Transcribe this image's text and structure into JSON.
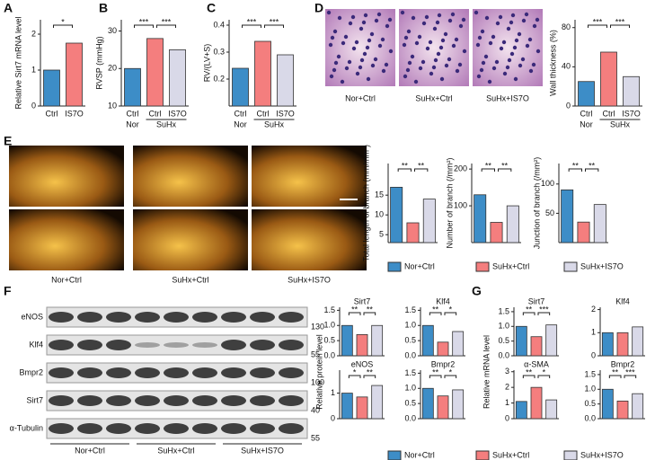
{
  "panels": {
    "letters": [
      "A",
      "B",
      "C",
      "D",
      "E",
      "F",
      "G"
    ],
    "d_images": [
      "Nor+Ctrl",
      "SuHx+Ctrl",
      "SuHx+IS7O"
    ],
    "e_images": [
      "Nor+Ctrl",
      "SuHx+Ctrl",
      "SuHx+IS7O"
    ],
    "legend": [
      {
        "name": "Nor+Ctrl",
        "color": "#3d8dc7"
      },
      {
        "name": "SuHx+Ctrl",
        "color": "#f47e7e"
      },
      {
        "name": "SuHx+IS7O",
        "color": "#d9d9e8"
      }
    ],
    "blot_rows": [
      "eNOS",
      "Klf4",
      "Bmpr2",
      "Sirt7",
      "α-Tubulin"
    ],
    "blot_markers": [
      130,
      55,
      100,
      40,
      55
    ],
    "blot_groups": [
      "Nor+Ctrl",
      "SuHx+Ctrl",
      "SuHx+IS7O"
    ],
    "f_ylabel": "Relative protein level",
    "g_ylabel": "Relative mRNA level"
  },
  "chart_data": [
    {
      "type": "bar",
      "ylabel": "Relative Sirt7 mRNA level",
      "categories": [
        "Ctrl",
        "IS7O"
      ],
      "values": [
        1.0,
        1.75
      ],
      "ylim": [
        0,
        2.4
      ],
      "yticks": [
        0,
        1,
        2
      ],
      "annotations": [
        "*"
      ]
    },
    {
      "type": "bar",
      "ylabel": "RVSP (mmHg)",
      "categories": [
        "Ctrl",
        "Ctrl",
        "IS7O"
      ],
      "groups": [
        "Nor",
        "SuHx"
      ],
      "values": [
        20,
        28,
        25
      ],
      "ylim": [
        10,
        33
      ],
      "yticks": [
        10,
        20,
        30
      ],
      "annotations": [
        "***",
        "***"
      ]
    },
    {
      "type": "bar",
      "ylabel": "RV/(LV+S)",
      "categories": [
        "Ctrl",
        "Ctrl",
        "IS7O"
      ],
      "groups": [
        "Nor",
        "SuHx"
      ],
      "values": [
        0.24,
        0.34,
        0.29
      ],
      "ylim": [
        0.1,
        0.42
      ],
      "yticks": [
        0.2,
        0.3,
        0.4
      ],
      "annotations": [
        "***",
        "***"
      ]
    },
    {
      "type": "bar",
      "ylabel": "Wall thickness (%)",
      "categories": [
        "Ctrl",
        "Ctrl",
        "IS7O"
      ],
      "groups": [
        "Nor",
        "SuHx"
      ],
      "values": [
        25,
        55,
        30
      ],
      "ylim": [
        0,
        88
      ],
      "yticks": [
        0,
        40,
        80
      ],
      "annotations": [
        "***",
        "***"
      ]
    },
    {
      "type": "bar",
      "ylabel": "Total length of branch (mm/mm²)",
      "values": [
        17,
        8,
        14
      ],
      "ylim": [
        3,
        23
      ],
      "yticks": [
        5,
        10,
        15
      ],
      "annotations": [
        "**",
        "**"
      ]
    },
    {
      "type": "bar",
      "ylabel": "Number of branch (/mm²)",
      "values": [
        130,
        55,
        100
      ],
      "ylim": [
        0,
        215
      ],
      "yticks": [
        100,
        200
      ],
      "annotations": [
        "**",
        "**"
      ]
    },
    {
      "type": "bar",
      "ylabel": "Junction of branch (/mm²)",
      "values": [
        90,
        35,
        65
      ],
      "ylim": [
        0,
        135
      ],
      "yticks": [
        50,
        100
      ],
      "annotations": [
        "**",
        "**"
      ]
    },
    {
      "type": "bar",
      "title": "Sirt7",
      "values": [
        1.0,
        0.7,
        1.0
      ],
      "ylim": [
        0,
        1.6
      ],
      "yticks": [
        {
          "value": 0,
          "label": "0.0"
        },
        0.5,
        {
          "value": 1,
          "label": "1.0"
        },
        1.5
      ],
      "annotations": [
        "**",
        "**"
      ]
    },
    {
      "type": "bar",
      "title": "Klf4",
      "values": [
        1.0,
        0.45,
        0.8
      ],
      "ylim": [
        0,
        1.6
      ],
      "yticks": [
        {
          "value": 0,
          "label": "0.0"
        },
        0.5,
        {
          "value": 1,
          "label": "1.0"
        },
        1.5
      ],
      "annotations": [
        "**",
        "*"
      ]
    },
    {
      "type": "bar",
      "title": "eNOS",
      "values": [
        1.0,
        0.85,
        1.3
      ],
      "ylim": [
        0,
        1.9
      ],
      "yticks": [
        0,
        1
      ],
      "annotations": [
        "*",
        "**"
      ]
    },
    {
      "type": "bar",
      "title": "Bmpr2",
      "values": [
        1.0,
        0.75,
        0.95
      ],
      "ylim": [
        0,
        1.6
      ],
      "yticks": [
        {
          "value": 0,
          "label": "0.0"
        },
        0.5,
        {
          "value": 1,
          "label": "1.0"
        },
        1.5
      ],
      "annotations": [
        "**",
        "*"
      ]
    },
    {
      "type": "bar",
      "title": "Sirt7",
      "values": [
        1.0,
        0.65,
        1.05
      ],
      "ylim": [
        0,
        1.65
      ],
      "yticks": [
        {
          "value": 0,
          "label": "0.0"
        },
        0.5,
        {
          "value": 1,
          "label": "1.0"
        },
        1.5
      ],
      "annotations": [
        "**",
        "***"
      ]
    },
    {
      "type": "bar",
      "title": "Klf4",
      "values": [
        1.0,
        1.0,
        1.25
      ],
      "ylim": [
        0,
        2.1
      ],
      "yticks": [
        0,
        1,
        2
      ],
      "annotations": []
    },
    {
      "type": "bar",
      "title": "α-SMA",
      "values": [
        1.1,
        2.0,
        1.2
      ],
      "ylim": [
        0,
        3.1
      ],
      "yticks": [
        0,
        1,
        2,
        3
      ],
      "annotations": [
        "**",
        "*"
      ]
    },
    {
      "type": "bar",
      "title": "Bmpr2",
      "values": [
        1.0,
        0.6,
        0.85
      ],
      "ylim": [
        0,
        1.65
      ],
      "yticks": [
        {
          "value": 0,
          "label": "0.0"
        },
        0.5,
        {
          "value": 1,
          "label": "1.0"
        },
        1.5
      ],
      "annotations": [
        "**",
        "***"
      ]
    }
  ]
}
